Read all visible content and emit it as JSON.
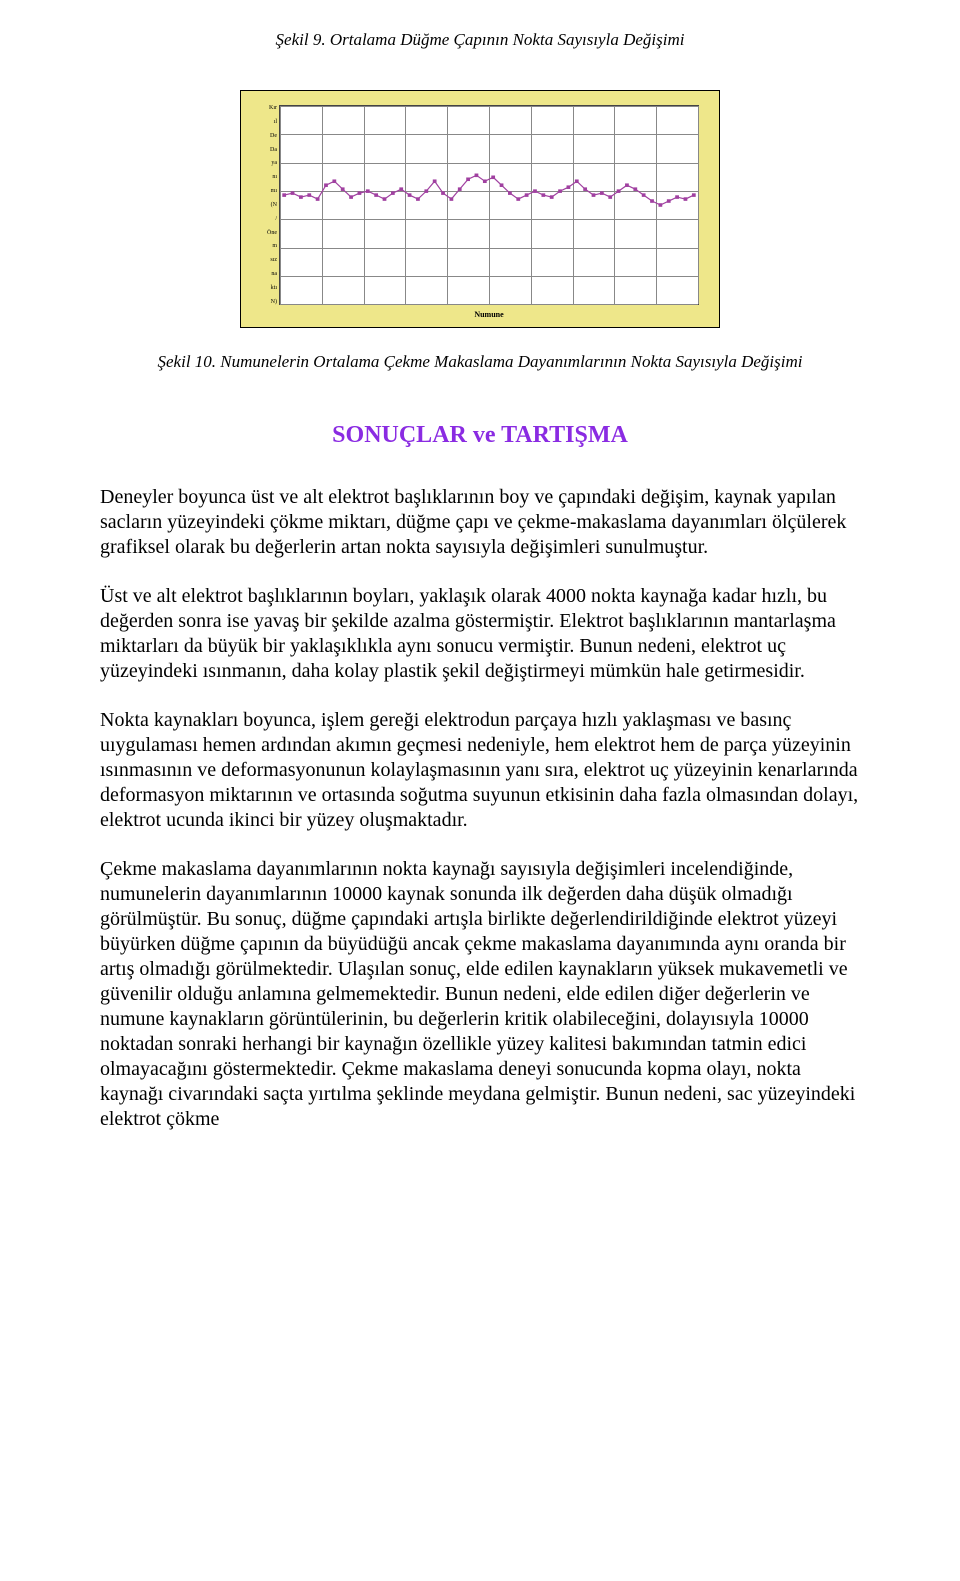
{
  "caption_top": "Şekil 9. Ortalama Düğme Çapının Nokta Sayısıyla Değişimi",
  "caption_mid": "Şekil 10. Numunelerin Ortalama Çekme Makaslama Dayanımlarının Nokta Sayısıyla Değişimi",
  "section_heading": "SONUÇLAR ve TARTIŞMA",
  "section_heading_color": "#8a2be2",
  "chart": {
    "type": "line",
    "background_color": "#eee78a",
    "plot_bg": "#ffffff",
    "grid_color": "#888888",
    "x_axis_title": "Numune",
    "x_ticks": [
      "",
      "",
      "",
      "",
      "",
      "",
      "",
      "",
      "",
      "",
      ""
    ],
    "y_tick_labels": [
      "Kır",
      "ıl",
      "De",
      "Da",
      "ya",
      "nı",
      "mı",
      "(N",
      "/",
      "Öne",
      "m",
      "sız",
      "na",
      "ktı",
      "N)"
    ],
    "ylim": [
      0,
      100
    ],
    "xlim": [
      0,
      100
    ],
    "h_grid_positions_pct": [
      0,
      14.3,
      28.6,
      42.9,
      57.2,
      71.5,
      85.8,
      100
    ],
    "v_grid_positions_pct": [
      0,
      10,
      20,
      30,
      40,
      50,
      60,
      70,
      80,
      90,
      100
    ],
    "series": {
      "color": "#a040a0",
      "marker_color": "#a040a0",
      "marker_size": 3,
      "line_width": 1.2,
      "points_pct": [
        [
          1,
          55
        ],
        [
          3,
          56
        ],
        [
          5,
          54
        ],
        [
          7,
          55
        ],
        [
          9,
          53
        ],
        [
          11,
          60
        ],
        [
          13,
          62
        ],
        [
          15,
          58
        ],
        [
          17,
          54
        ],
        [
          19,
          56
        ],
        [
          21,
          57
        ],
        [
          23,
          55
        ],
        [
          25,
          53
        ],
        [
          27,
          56
        ],
        [
          29,
          58
        ],
        [
          31,
          55
        ],
        [
          33,
          53
        ],
        [
          35,
          57
        ],
        [
          37,
          62
        ],
        [
          39,
          56
        ],
        [
          41,
          53
        ],
        [
          43,
          58
        ],
        [
          45,
          63
        ],
        [
          47,
          65
        ],
        [
          49,
          62
        ],
        [
          51,
          64
        ],
        [
          53,
          60
        ],
        [
          55,
          56
        ],
        [
          57,
          53
        ],
        [
          59,
          55
        ],
        [
          61,
          57
        ],
        [
          63,
          55
        ],
        [
          65,
          54
        ],
        [
          67,
          57
        ],
        [
          69,
          59
        ],
        [
          71,
          62
        ],
        [
          73,
          58
        ],
        [
          75,
          55
        ],
        [
          77,
          56
        ],
        [
          79,
          54
        ],
        [
          81,
          57
        ],
        [
          83,
          60
        ],
        [
          85,
          58
        ],
        [
          87,
          55
        ],
        [
          89,
          52
        ],
        [
          91,
          50
        ],
        [
          93,
          52
        ],
        [
          95,
          54
        ],
        [
          97,
          53
        ],
        [
          99,
          55
        ]
      ]
    }
  },
  "paragraphs": [
    "Deneyler boyunca üst ve alt elektrot başlıklarının boy ve çapındaki değişim, kaynak yapılan sacların yüzeyindeki çökme miktarı, düğme çapı ve çekme-makaslama dayanımları ölçülerek grafiksel olarak bu değerlerin artan nokta sayısıyla değişimleri sunulmuştur.",
    "Üst ve alt elektrot başlıklarının boyları, yaklaşık olarak 4000 nokta kaynağa kadar hızlı, bu değerden sonra ise yavaş bir şekilde azalma göstermiştir. Elektrot başlıklarının mantarlaşma miktarları da büyük bir yaklaşıklıkla aynı sonucu vermiştir. Bunun nedeni, elektrot  uç yüzeyindeki ısınmanın,  daha kolay plastik şekil değiştirmeyi mümkün hale getirmesidir.",
    "Nokta kaynakları boyunca, işlem gereği elektrodun parçaya hızlı yaklaşması ve basınç uıygulaması hemen ardından akımın geçmesi nedeniyle, hem elektrot hem de parça yüzeyinin ısınmasının ve deformasyonunun kolaylaşmasının yanı sıra, elektrot uç yüzeyinin kenarlarında deformasyon miktarının ve ortasında soğutma suyunun etkisinin daha fazla olmasından dolayı, elektrot ucunda ikinci bir yüzey oluşmaktadır.",
    "Çekme makaslama dayanımlarının nokta kaynağı sayısıyla değişimleri incelendiğinde, numunelerin dayanımlarının 10000 kaynak sonunda ilk değerden daha düşük olmadığı görülmüştür. Bu sonuç, düğme çapındaki artışla birlikte değerlendirildiğinde elektrot yüzeyi büyürken düğme çapının da büyüdüğü ancak çekme makaslama dayanımında aynı oranda bir artış olmadığı görülmektedir. Ulaşılan sonuç, elde edilen kaynakların yüksek mukavemetli ve güvenilir olduğu anlamına gelmemektedir. Bunun nedeni, elde edilen diğer değerlerin ve numune kaynakların görüntülerinin, bu değerlerin kritik olabileceğini, dolayısıyla 10000 noktadan sonraki herhangi bir kaynağın özellikle yüzey kalitesi bakımından tatmin edici olmayacağını göstermektedir. Çekme makaslama deneyi sonucunda kopma olayı, nokta kaynağı civarındaki saçta yırtılma şeklinde meydana gelmiştir. Bunun nedeni, sac yüzeyindeki elektrot çökme"
  ]
}
